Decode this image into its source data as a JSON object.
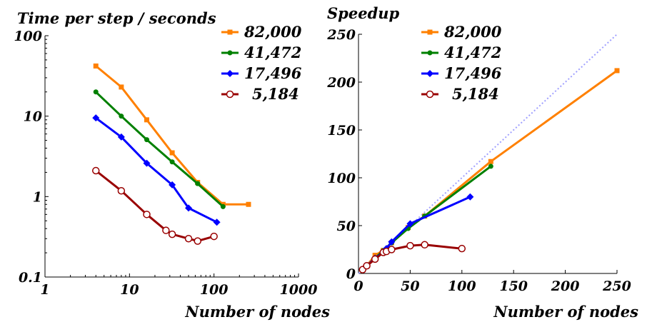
{
  "chart_data": [
    {
      "type": "line",
      "title": "Time per step / seconds",
      "xlabel": "Number of nodes",
      "ylabel": "",
      "xscale": "log",
      "yscale": "log",
      "xlim": [
        1,
        1000
      ],
      "ylim": [
        0.1,
        100
      ],
      "xticks": [
        "1",
        "10",
        "100",
        "1000"
      ],
      "yticks": [
        "0.1",
        "1",
        "10",
        "100"
      ],
      "legend_position": "top-right",
      "series": [
        {
          "name": "82,000",
          "color": "#ff8000",
          "marker": "square",
          "x": [
            4,
            8,
            16,
            32,
            64,
            128,
            256
          ],
          "y": [
            42,
            23,
            9,
            3.5,
            1.5,
            0.8,
            0.8
          ]
        },
        {
          "name": "41,472",
          "color": "#008000",
          "marker": "dot",
          "x": [
            4,
            8,
            16,
            32,
            64,
            128
          ],
          "y": [
            20,
            10,
            5.1,
            2.7,
            1.45,
            0.75
          ]
        },
        {
          "name": "17,496",
          "color": "#0000ff",
          "marker": "diamond",
          "x": [
            4,
            8,
            16,
            32,
            50,
            108
          ],
          "y": [
            9.5,
            5.5,
            2.6,
            1.4,
            0.72,
            0.48
          ]
        },
        {
          "name": "5,184",
          "color": "#990000",
          "marker": "circle-open",
          "x": [
            4,
            8,
            16,
            27,
            32,
            50,
            64,
            100
          ],
          "y": [
            2.1,
            1.18,
            0.6,
            0.38,
            0.34,
            0.3,
            0.28,
            0.32
          ]
        }
      ]
    },
    {
      "type": "line",
      "title": "Speedup",
      "xlabel": "Number of nodes",
      "ylabel": "",
      "xlim": [
        0,
        250
      ],
      "ylim": [
        0,
        250
      ],
      "xticks": [
        "0",
        "50",
        "100",
        "150",
        "200",
        "250"
      ],
      "yticks": [
        "0",
        "50",
        "100",
        "150",
        "200",
        "250"
      ],
      "grid": false,
      "legend_position": "top-center",
      "reference_line": {
        "color": "#a0a0ff",
        "style": "dotted",
        "x": [
          0,
          250
        ],
        "y": [
          0,
          250
        ]
      },
      "series": [
        {
          "name": "82,000",
          "color": "#ff8000",
          "marker": "square",
          "x": [
            4,
            8,
            16,
            24,
            32,
            48,
            64,
            128,
            250
          ],
          "y": [
            4,
            8,
            19,
            24,
            32,
            48,
            60,
            117,
            212
          ]
        },
        {
          "name": "41,472",
          "color": "#008000",
          "marker": "dot",
          "x": [
            4,
            8,
            16,
            24,
            32,
            48,
            64,
            128
          ],
          "y": [
            4,
            8,
            16,
            24,
            32,
            47,
            60,
            112
          ]
        },
        {
          "name": "17,496",
          "color": "#0000ff",
          "marker": "diamond",
          "x": [
            4,
            8,
            16,
            24,
            27,
            32,
            50,
            108
          ],
          "y": [
            4,
            8,
            16,
            22,
            26,
            33,
            52,
            80
          ]
        },
        {
          "name": "5,184",
          "color": "#990000",
          "marker": "circle-open",
          "x": [
            4,
            8,
            16,
            24,
            27,
            32,
            50,
            64,
            100
          ],
          "y": [
            4,
            8,
            15,
            22,
            23,
            25,
            29,
            30,
            26
          ]
        }
      ]
    }
  ]
}
